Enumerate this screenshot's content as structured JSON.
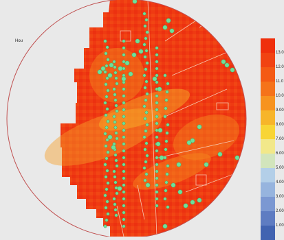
{
  "legend": {
    "title": "Hou",
    "items": [
      {
        "label": "13.0",
        "color": "#ef2f0c"
      },
      {
        "label": "12.0",
        "color": "#f14312"
      },
      {
        "label": "11.0",
        "color": "#f45a14"
      },
      {
        "label": "10.0",
        "color": "#f5731a"
      },
      {
        "label": "9.00",
        "color": "#f7931f"
      },
      {
        "label": "8.00",
        "color": "#f7b52a"
      },
      {
        "label": "7.00",
        "color": "#f8d535"
      },
      {
        "label": "6.00",
        "color": "#f2e88a"
      },
      {
        "label": "5.00",
        "color": "#d2e5bc"
      },
      {
        "label": "4.00",
        "color": "#b3cfe8"
      },
      {
        "label": "3.00",
        "color": "#96b4de"
      },
      {
        "label": "2.00",
        "color": "#7b98d2"
      },
      {
        "label": "1.00",
        "color": "#5e7cc2"
      },
      {
        "label": "",
        "color": "#4163b1"
      }
    ]
  },
  "map": {
    "background_color": "#e9e9e9",
    "heat_base_color": "#ef3a12",
    "point_color": "#6ee09a",
    "point_stroke": "#3aa365",
    "circle_color": "#c05050"
  }
}
